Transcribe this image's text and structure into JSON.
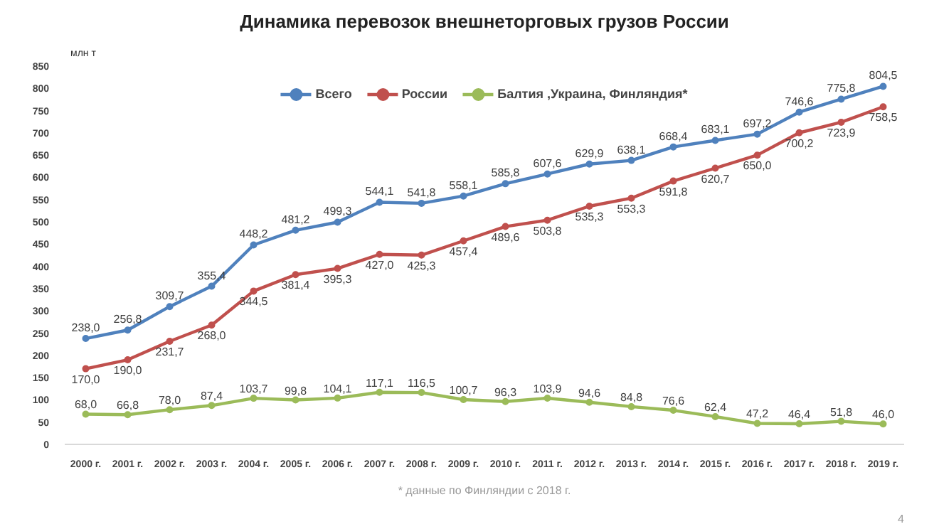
{
  "chart_data": {
    "type": "line",
    "title": "Динамика перевозок внешнеторговых грузов России",
    "ylabel": "млн т",
    "categories": [
      "2000 г.",
      "2001 г.",
      "2002 г.",
      "2003 г.",
      "2004 г.",
      "2005 г.",
      "2006 г.",
      "2007 г.",
      "2008 г.",
      "2009 г.",
      "2010 г.",
      "2011 г.",
      "2012 г.",
      "2013 г.",
      "2014 г.",
      "2015 г.",
      "2016 г.",
      "2017 г.",
      "2018 г.",
      "2019 г."
    ],
    "series": [
      {
        "name": "Всего",
        "color": "#4f81bd",
        "values": [
          238.0,
          256.8,
          309.7,
          355.4,
          448.2,
          481.2,
          499.3,
          544.1,
          541.8,
          558.1,
          585.8,
          607.6,
          629.9,
          638.1,
          668.4,
          683.1,
          697.2,
          746.6,
          775.8,
          804.5
        ],
        "value_labels": [
          "238,0",
          "256,8",
          "309,7",
          "355,4",
          "448,2",
          "481,2",
          "499,3",
          "544,1",
          "541,8",
          "558,1",
          "585,8",
          "607,6",
          "629,9",
          "638,1",
          "668,4",
          "683,1",
          "697,2",
          "746,6",
          "775,8",
          "804,5"
        ]
      },
      {
        "name": "России",
        "color": "#c0504d",
        "values": [
          170.0,
          190.0,
          231.7,
          268.0,
          344.5,
          381.4,
          395.3,
          427.0,
          425.3,
          457.4,
          489.6,
          503.8,
          535.3,
          553.3,
          591.8,
          620.7,
          650.0,
          700.2,
          723.9,
          758.5
        ],
        "value_labels": [
          "170,0",
          "190,0",
          "231,7",
          "268,0",
          "344,5",
          "381,4",
          "395,3",
          "427,0",
          "425,3",
          "457,4",
          "489,6",
          "503,8",
          "535,3",
          "553,3",
          "591,8",
          "620,7",
          "650,0",
          "700,2",
          "723,9",
          "758,5"
        ]
      },
      {
        "name": "Балтия ,Украина, Финляндия*",
        "color": "#9bbb59",
        "values": [
          68.0,
          66.8,
          78.0,
          87.4,
          103.7,
          99.8,
          104.1,
          117.1,
          116.5,
          100.7,
          96.3,
          103.9,
          94.6,
          84.8,
          76.6,
          62.4,
          47.2,
          46.4,
          51.8,
          46.0
        ],
        "value_labels": [
          "68,0",
          "66,8",
          "78,0",
          "87,4",
          "103,7",
          "99,8",
          "104,1",
          "117,1",
          "116,5",
          "100,7",
          "96,3",
          "103,9",
          "94,6",
          "84,8",
          "76,6",
          "62,4",
          "47,2",
          "46,4",
          "51,8",
          "46,0"
        ]
      }
    ],
    "ylim": [
      0,
      850
    ],
    "yticks": [
      0,
      50,
      100,
      150,
      200,
      250,
      300,
      350,
      400,
      450,
      500,
      550,
      600,
      650,
      700,
      750,
      800,
      850
    ],
    "grid": false,
    "legend": "top",
    "marker": "circle",
    "line_style": "solid",
    "annotations": [
      "* данные по Финляндии с 2018 г.",
      "4"
    ]
  }
}
